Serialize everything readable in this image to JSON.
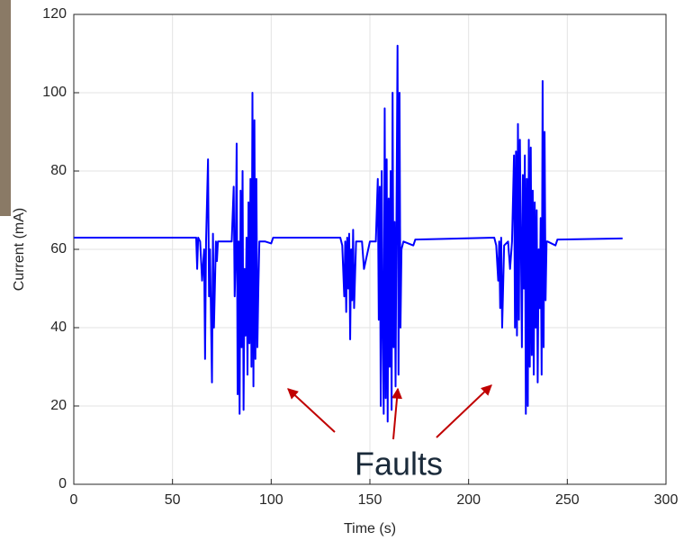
{
  "chart_data": {
    "type": "line",
    "xlabel": "Time (s)",
    "ylabel": "Current (mA)",
    "annotation": "Faults",
    "color": "#0000ff",
    "grid": true,
    "xlim": [
      0,
      300
    ],
    "xticks": [
      0,
      50,
      100,
      150,
      200,
      250,
      300
    ],
    "ylim": [
      0,
      120
    ],
    "yticks": [
      0,
      20,
      40,
      60,
      80,
      100,
      120
    ],
    "x": [
      0,
      62,
      62.5,
      63,
      64,
      65,
      66,
      66.5,
      67,
      68,
      68.5,
      69,
      70,
      70.5,
      71,
      72,
      72.5,
      73,
      75,
      78,
      80,
      81,
      81.5,
      82,
      82.5,
      83,
      83.5,
      84,
      84.5,
      85,
      85.5,
      86,
      86.5,
      87,
      87.5,
      88,
      88.5,
      89,
      89.5,
      90,
      90.5,
      91,
      91.5,
      92,
      92.5,
      93,
      93.5,
      94,
      97,
      100,
      101,
      135,
      136,
      137,
      137.5,
      138,
      138.5,
      139,
      139.5,
      140,
      140.5,
      141,
      141.5,
      142,
      143,
      145,
      146,
      147,
      150,
      153,
      154,
      154.5,
      155,
      155.5,
      156,
      156.5,
      157,
      157.5,
      158,
      158.5,
      159,
      159.5,
      160,
      160.5,
      161,
      161.5,
      162,
      162.5,
      163,
      163.5,
      164,
      164.5,
      165,
      165.5,
      166,
      167,
      172,
      173,
      213,
      214,
      215,
      215.5,
      216,
      216.5,
      217,
      218,
      220,
      221,
      222,
      223,
      223.5,
      224,
      224.5,
      225,
      225.5,
      226,
      226.5,
      227,
      227.5,
      228,
      228.5,
      229,
      229.5,
      230,
      230.5,
      231,
      231.5,
      232,
      232.5,
      233,
      233.5,
      234,
      234.5,
      235,
      235.5,
      236,
      236.5,
      237,
      237.5,
      238,
      238.5,
      239,
      239.5,
      240,
      244,
      245,
      278
    ],
    "values": [
      63,
      63,
      55,
      63,
      62,
      52,
      60,
      32,
      62,
      83,
      48,
      60,
      26,
      64,
      40,
      62,
      57,
      62,
      62,
      62,
      62,
      76,
      48,
      58,
      87,
      23,
      62,
      18,
      75,
      35,
      80,
      19,
      55,
      38,
      63,
      28,
      72,
      36,
      78,
      30,
      100,
      25,
      93,
      32,
      78,
      35,
      50,
      62,
      62,
      61.5,
      63,
      63,
      61,
      48,
      62,
      44,
      63,
      50,
      64,
      37,
      60,
      47,
      65,
      45,
      62,
      62,
      62,
      55,
      62,
      62,
      78,
      42,
      76,
      20,
      80,
      40,
      18,
      96,
      22,
      83,
      16,
      73,
      30,
      80,
      19,
      100,
      35,
      67,
      25,
      72,
      112,
      28,
      100,
      40,
      60,
      62,
      61,
      62.5,
      63,
      61,
      52,
      62,
      45,
      63,
      40,
      61,
      62,
      55,
      62,
      84,
      40,
      85,
      38,
      92,
      42,
      88,
      62,
      35,
      79,
      50,
      84,
      18,
      78,
      20,
      88,
      30,
      86,
      33,
      75,
      28,
      72,
      40,
      70,
      26,
      60,
      45,
      68,
      28,
      103,
      35,
      90,
      47,
      62,
      62,
      61,
      62.5,
      62.8
    ]
  }
}
